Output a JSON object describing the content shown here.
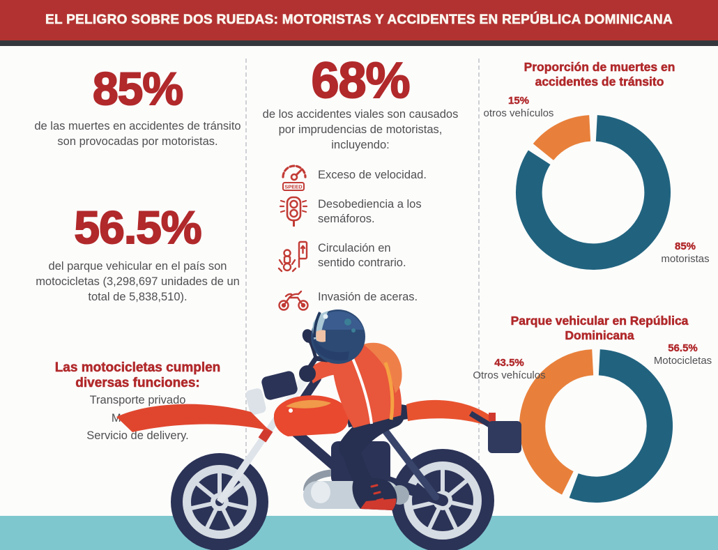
{
  "banner": {
    "title": "EL PELIGRO SOBRE DOS RUEDAS: MOTORISTAS Y ACCIDENTES EN REPÚBLICA DOMINICANA"
  },
  "left_column": {
    "stat_deaths": {
      "value": "85%",
      "description": "de las muertes en accidentes de tránsito son provocadas por motoristas."
    },
    "stat_fleet": {
      "value": "56.5%",
      "description": "del parque vehicular en el país son motocicletas (3,298,697 unidades de un total de 5,838,510)."
    },
    "functions": {
      "heading": "Las motocicletas cumplen diversas funciones:",
      "items": [
        "Transporte privado",
        "Mototaxis,",
        "Servicio de delivery."
      ]
    }
  },
  "middle_column": {
    "stat_accidents": {
      "value": "68%",
      "description": "de los accidentes viales son causados por imprudencias de motoristas, incluyendo:"
    },
    "causes": [
      {
        "icon": "speedometer-icon",
        "label": "Exceso de velocidad."
      },
      {
        "icon": "traffic-light-icon",
        "label": "Desobediencia a los semáforos."
      },
      {
        "icon": "wrong-way-icon",
        "label": "Circulación en sentido contrario."
      },
      {
        "icon": "motorcycle-icon",
        "label": "Invasión de aceras."
      }
    ],
    "speed_badge_text": "SPEED"
  },
  "chart_data": [
    {
      "type": "pie",
      "donut": true,
      "title": "Proporción de muertes en accidentes de tránsito",
      "slices": [
        {
          "label": "motoristas",
          "value": 85,
          "value_label": "85%",
          "color": "#21637f"
        },
        {
          "label": "otros vehículos",
          "value": 15,
          "value_label": "15%",
          "color": "#e8803b"
        }
      ],
      "start_angle": "top",
      "direction": "clockwise",
      "legend_position": "around-donut"
    },
    {
      "type": "pie",
      "donut": true,
      "title": "Parque vehicular en República Dominicana",
      "slices": [
        {
          "label": "Motocicletas",
          "value": 56.5,
          "value_label": "56.5%",
          "color": "#21637f"
        },
        {
          "label": "Otros vehículos",
          "value": 43.5,
          "value_label": "43.5%",
          "color": "#e8803b"
        }
      ],
      "start_angle": "top",
      "direction": "clockwise",
      "legend_position": "around-donut"
    }
  ],
  "colors": {
    "accent_red": "#b1292b",
    "banner_red": "#b23231",
    "dark_strip": "#34383c",
    "donut_teal": "#21637f",
    "donut_orange": "#e8803b",
    "bottom_band_teal": "#7fc7cf",
    "body_text_gray": "#4f4f52",
    "icon_red": "#c23b35"
  }
}
